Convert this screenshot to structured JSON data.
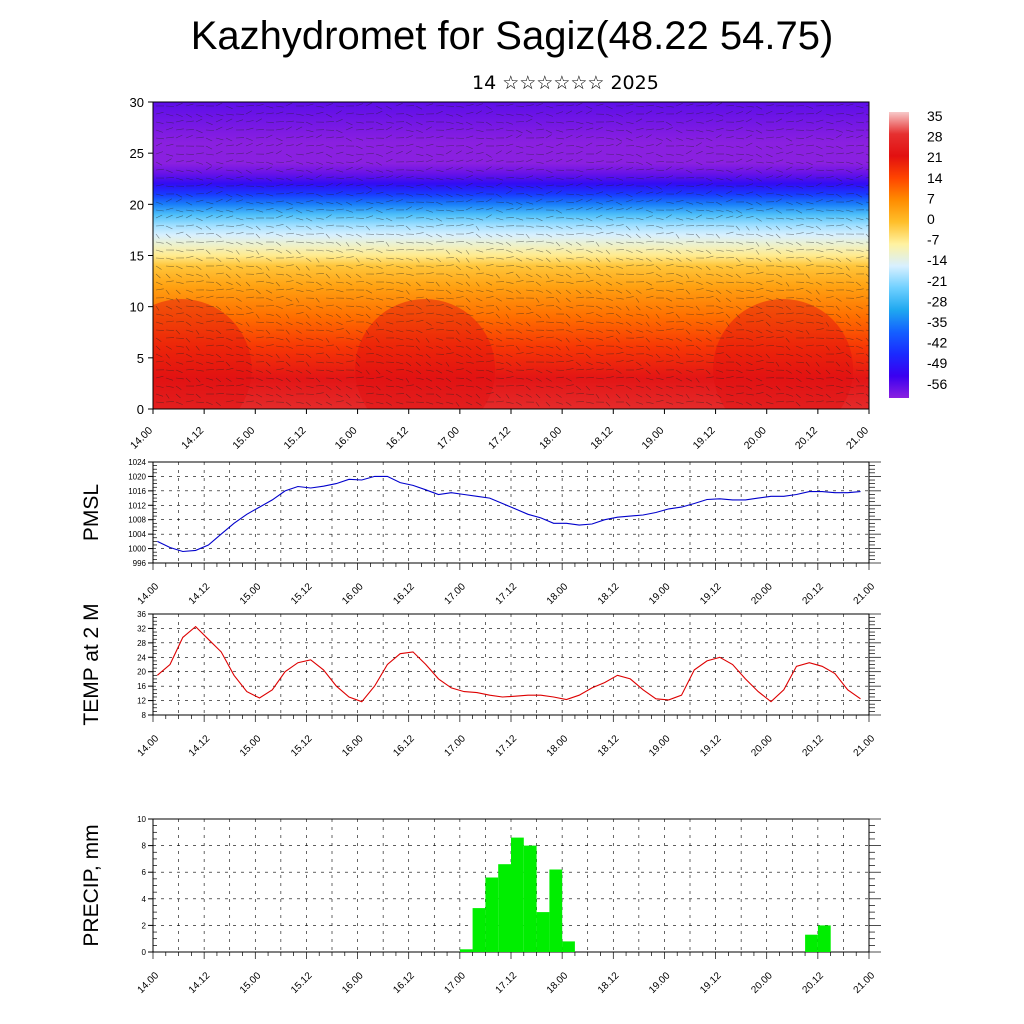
{
  "title": "Kazhydromet for Sagiz(48.22 54.75)",
  "subtitle": "14 ☆☆☆☆☆☆ 2025",
  "colors": {
    "pmsl_line": "#0000cc",
    "temp_line": "#dd0000",
    "precip_bar": "#00ee00",
    "axis": "#000000",
    "grid": "#000000"
  },
  "chart_data": [
    {
      "type": "heatmap",
      "name": "vertical-cross-section",
      "ylim": [
        0,
        30
      ],
      "yticks": [
        0,
        5,
        10,
        15,
        20,
        25,
        30
      ],
      "xticks": [
        "14.00",
        "14.12",
        "15.00",
        "15.12",
        "16.00",
        "16.12",
        "17.00",
        "17.12",
        "18.00",
        "18.12",
        "19.00",
        "19.12",
        "20.00",
        "20.12",
        "21.00"
      ],
      "colorbar": {
        "labels": [
          "35",
          "28",
          "21",
          "14",
          "7",
          "0",
          "-7",
          "-14",
          "-21",
          "-28",
          "-35",
          "-42",
          "-49",
          "-56"
        ],
        "colors": [
          "#f7c9c9",
          "#e63030",
          "#e21010",
          "#ff4500",
          "#ff8c00",
          "#ffbf2a",
          "#fff2a0",
          "#d8f0ff",
          "#6fd0ff",
          "#1fa8f0",
          "#1460ff",
          "#1a2aff",
          "#3a00f0",
          "#8a20e0"
        ]
      },
      "temperature_profile": {
        "levels": [
          0,
          3,
          6,
          9,
          12,
          14,
          15,
          16,
          17,
          18,
          19,
          20,
          21,
          22,
          23,
          24,
          25,
          26,
          27,
          28,
          29,
          30
        ],
        "values": [
          27,
          22,
          16,
          10,
          4,
          -1,
          -6,
          -10,
          -14,
          -18,
          -24,
          -32,
          -40,
          -47,
          -53,
          -57,
          -58,
          -57,
          -55,
          -54,
          -53,
          -52
        ]
      }
    },
    {
      "type": "line",
      "name": "pmsl",
      "ylabel": "PMSL",
      "ylim": [
        996,
        1024
      ],
      "yticks": [
        996,
        1000,
        1004,
        1008,
        1012,
        1016,
        1020,
        1024
      ],
      "xticks": [
        "14.00",
        "14.12",
        "15.00",
        "15.12",
        "16.00",
        "16.12",
        "17.00",
        "17.12",
        "18.00",
        "18.12",
        "19.00",
        "19.12",
        "20.00",
        "20.12",
        "21.00"
      ],
      "x": [
        0,
        3,
        6,
        9,
        12,
        15,
        18,
        21,
        24,
        27,
        30,
        33,
        36,
        39,
        42,
        45,
        48,
        51,
        54,
        57,
        60,
        63,
        66,
        69,
        72,
        75,
        78,
        81,
        84,
        87,
        90,
        93,
        96,
        99,
        102,
        105,
        108,
        111,
        114,
        117,
        120,
        123,
        126,
        129,
        132,
        135,
        138,
        141,
        144,
        147,
        150,
        153,
        156,
        159,
        162,
        165
      ],
      "values": [
        1002,
        1000.3,
        999.2,
        999.5,
        1001,
        1004,
        1007,
        1009.5,
        1011.5,
        1013.5,
        1016,
        1017.2,
        1016.8,
        1017.3,
        1018,
        1019.2,
        1019,
        1020,
        1020,
        1018.3,
        1017.5,
        1016.3,
        1015,
        1015.5,
        1015,
        1014.5,
        1014,
        1012.5,
        1011,
        1009.5,
        1008.5,
        1007,
        1007,
        1006.5,
        1006.8,
        1008,
        1008.7,
        1009,
        1009.3,
        1010,
        1011,
        1011.5,
        1012.5,
        1013.6,
        1013.8,
        1013.5,
        1013.5,
        1014,
        1014.5,
        1014.5,
        1015,
        1015.8,
        1015.8,
        1015.5,
        1015.5,
        1015.8
      ]
    },
    {
      "type": "line",
      "name": "temperature-2m",
      "ylabel": "TEMP at 2 M",
      "ylim": [
        8,
        36
      ],
      "yticks": [
        8,
        12,
        16,
        20,
        24,
        28,
        32,
        36
      ],
      "xticks": [
        "14.00",
        "14.12",
        "15.00",
        "15.12",
        "16.00",
        "16.12",
        "17.00",
        "17.12",
        "18.00",
        "18.12",
        "19.00",
        "19.12",
        "20.00",
        "20.12",
        "21.00"
      ],
      "x": [
        0,
        3,
        6,
        9,
        12,
        15,
        18,
        21,
        24,
        27,
        30,
        33,
        36,
        39,
        42,
        45,
        48,
        51,
        54,
        57,
        60,
        63,
        66,
        69,
        72,
        75,
        78,
        81,
        84,
        87,
        90,
        93,
        96,
        99,
        102,
        105,
        108,
        111,
        114,
        117,
        120,
        123,
        126,
        129,
        132,
        135,
        138,
        141,
        144,
        147,
        150,
        153,
        156,
        159,
        162,
        165
      ],
      "values": [
        19,
        22,
        29.5,
        32.5,
        29,
        25.5,
        19,
        14.5,
        12.7,
        15,
        20,
        22.5,
        23.3,
        20.5,
        16,
        13,
        11.7,
        16,
        22,
        25,
        25.5,
        22,
        18,
        15.5,
        14.5,
        14.2,
        13.5,
        13,
        13.2,
        13.5,
        13.5,
        13,
        12.3,
        13.5,
        15.5,
        17,
        19,
        18,
        15,
        12.5,
        12.2,
        13.5,
        20.5,
        23,
        24,
        22,
        18,
        14.5,
        11.7,
        15,
        21.5,
        22.5,
        21.5,
        19.5,
        15,
        12.5
      ]
    },
    {
      "type": "bar",
      "name": "precipitation",
      "ylabel": "PRECIP, mm",
      "ylim": [
        0,
        10
      ],
      "yticks": [
        0,
        2,
        4,
        6,
        8,
        10
      ],
      "xticks": [
        "14.00",
        "14.12",
        "15.00",
        "15.12",
        "16.00",
        "16.12",
        "17.00",
        "17.12",
        "18.00",
        "18.12",
        "19.00",
        "19.12",
        "20.00",
        "20.12",
        "21.00"
      ],
      "x_start": [
        72,
        75,
        78,
        81,
        84,
        87,
        90,
        93,
        96,
        99,
        153,
        156
      ],
      "values": [
        0.2,
        3.3,
        5.6,
        6.6,
        8.6,
        8,
        3,
        6.2,
        0.8,
        0,
        1.3,
        2
      ]
    }
  ]
}
